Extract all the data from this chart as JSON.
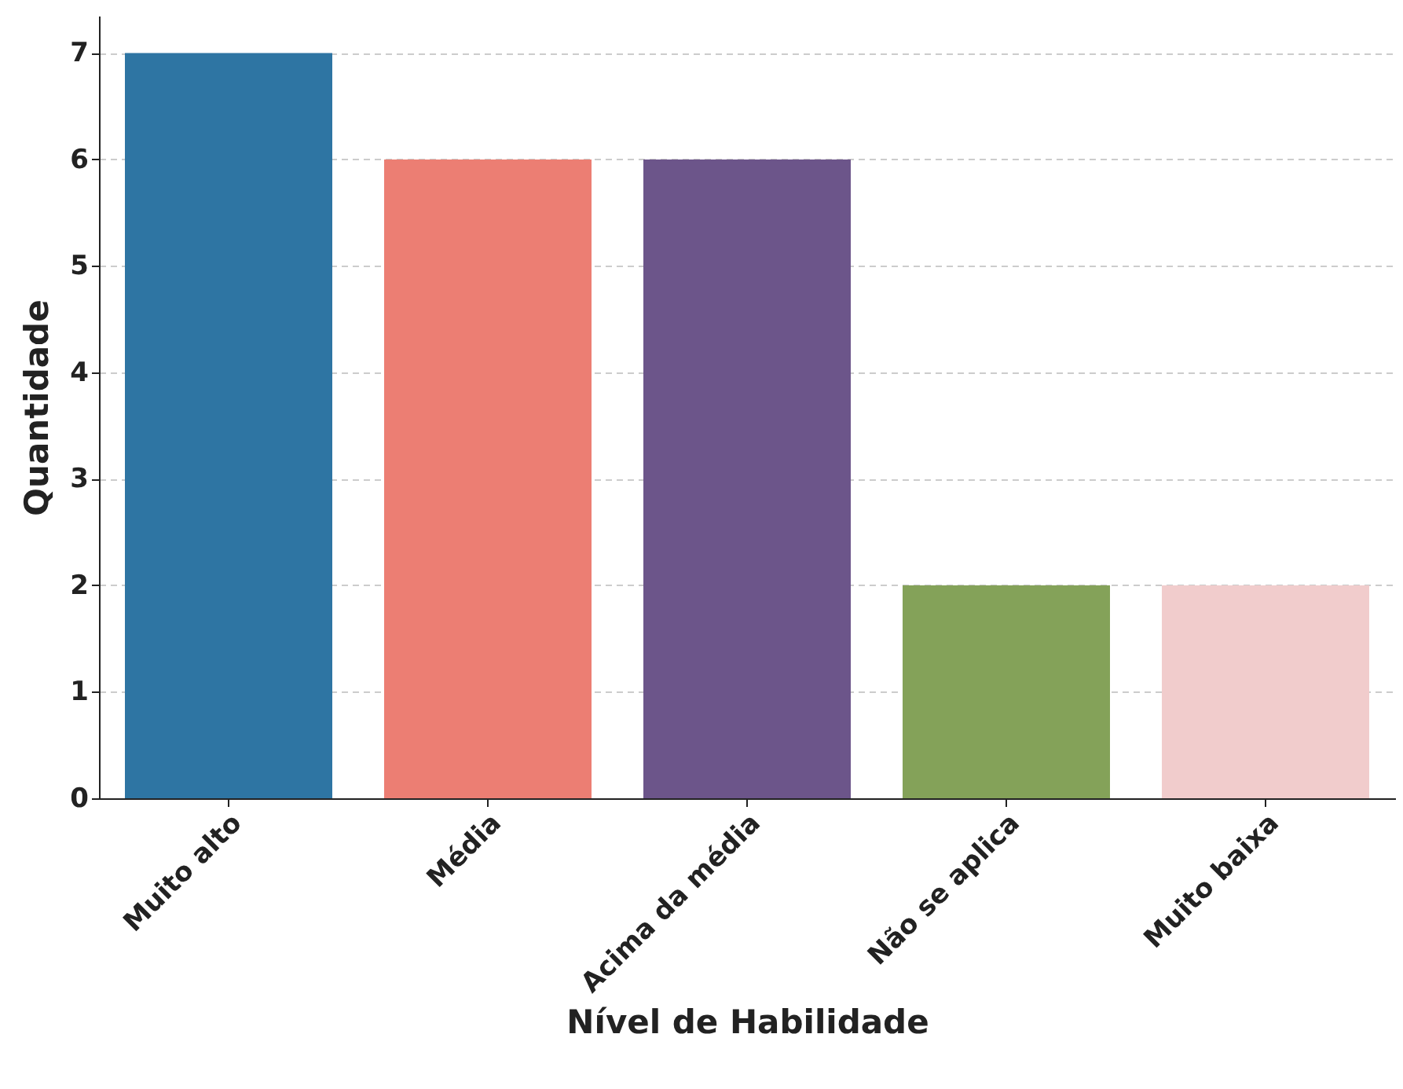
{
  "chart_data": {
    "type": "bar",
    "xlabel": "Nível de Habilidade",
    "ylabel": "Quantidade",
    "categories": [
      "Muito alto",
      "Média",
      "Acima da média",
      "Não se aplica",
      "Muito baixa"
    ],
    "values": [
      7,
      6,
      6,
      2,
      2
    ],
    "colors": [
      "#2e75a3",
      "#ec7e73",
      "#6c558a",
      "#84a259",
      "#f1cccc"
    ],
    "ylim": [
      0,
      7.35
    ],
    "yticks": [
      0,
      1,
      2,
      3,
      4,
      5,
      6,
      7
    ],
    "grid": "y"
  }
}
